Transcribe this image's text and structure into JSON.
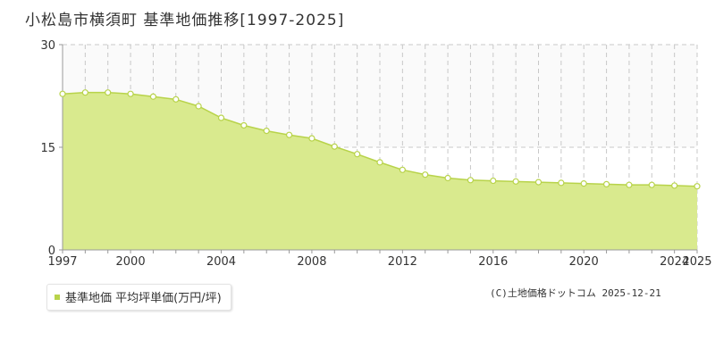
{
  "title": "小松島市横須町 基準地価推移[1997-2025]",
  "legend_label": "基準地価 平均坪単価(万円/坪)",
  "footer": "(C)土地価格ドットコム 2025-12-21",
  "colors": {
    "fill": "#d9ea8e",
    "line": "#b8d34a",
    "point_fill": "#ffffff",
    "grid": "#c8c8c8",
    "axis": "#999999",
    "legend_swatch": "#b8d34a"
  },
  "chart_data": {
    "type": "area",
    "title": "小松島市横須町 基準地価推移[1997-2025]",
    "xlabel": "",
    "ylabel": "",
    "xlim": [
      1997,
      2025
    ],
    "ylim": [
      0,
      30
    ],
    "yticks": [
      0,
      15,
      30
    ],
    "xticks": [
      1997,
      2000,
      2004,
      2008,
      2012,
      2016,
      2020,
      2024,
      2025
    ],
    "grid": true,
    "legend": "bottom-left",
    "series": [
      {
        "name": "基準地価 平均坪単価(万円/坪)",
        "x": [
          1997,
          1998,
          1999,
          2000,
          2001,
          2002,
          2003,
          2004,
          2005,
          2006,
          2007,
          2008,
          2009,
          2010,
          2011,
          2012,
          2013,
          2014,
          2015,
          2016,
          2017,
          2018,
          2019,
          2020,
          2021,
          2022,
          2023,
          2024,
          2025
        ],
        "values": [
          22.8,
          23.0,
          23.0,
          22.8,
          22.4,
          22.0,
          21.0,
          19.3,
          18.2,
          17.4,
          16.8,
          16.3,
          15.1,
          14.0,
          12.8,
          11.7,
          11.0,
          10.5,
          10.2,
          10.1,
          10.0,
          9.9,
          9.8,
          9.7,
          9.6,
          9.5,
          9.5,
          9.4,
          9.3
        ]
      }
    ]
  }
}
